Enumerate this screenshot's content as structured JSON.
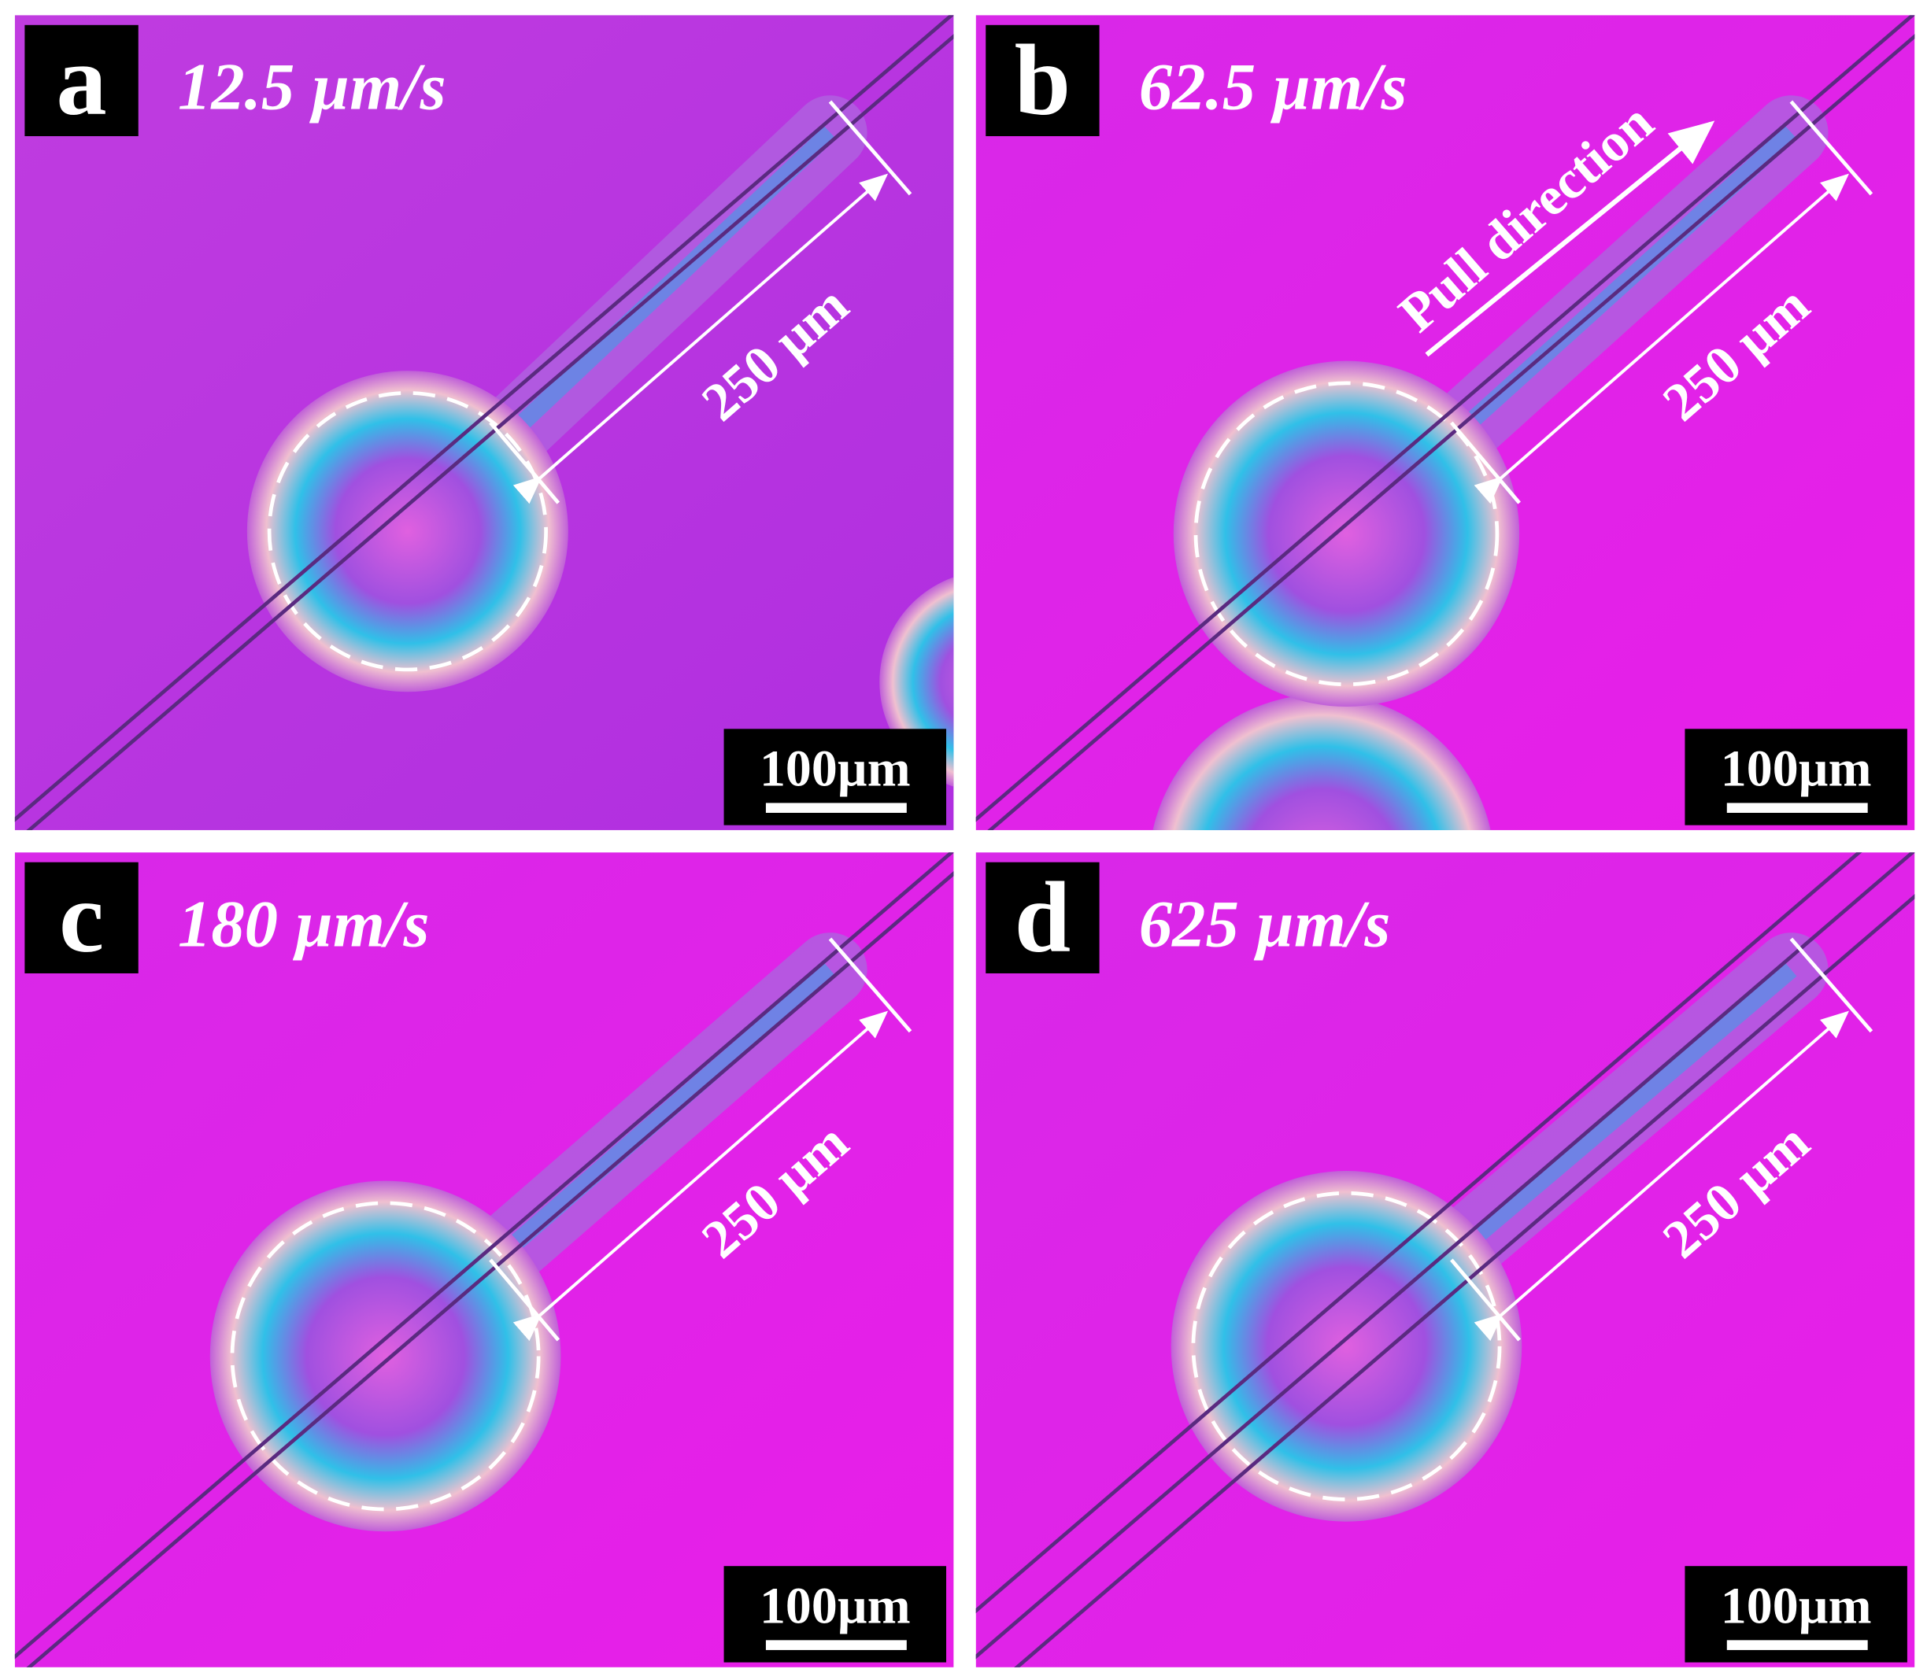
{
  "panels": [
    {
      "letter": "a",
      "speed": "12.5 µm/s",
      "length_label": "250 µm",
      "scale_bar": "100µm"
    },
    {
      "letter": "b",
      "speed": "62.5 µm/s",
      "length_label": "250 µm",
      "scale_bar": "100µm",
      "annotation": "Pull direction"
    },
    {
      "letter": "c",
      "speed": "180 µm/s",
      "length_label": "250 µm",
      "scale_bar": "100µm"
    },
    {
      "letter": "d",
      "speed": "625 µm/s",
      "length_label": "250 µm",
      "scale_bar": "100µm"
    }
  ]
}
